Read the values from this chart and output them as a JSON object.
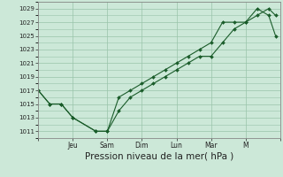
{
  "bg_color": "#cce8d8",
  "grid_color": "#99c4aa",
  "line_color": "#1a5c2a",
  "marker_color": "#1a5c2a",
  "xlabel": "Pression niveau de la mer( hPa )",
  "xlabel_fontsize": 7.5,
  "yticks": [
    1011,
    1013,
    1015,
    1017,
    1019,
    1021,
    1023,
    1025,
    1027,
    1029
  ],
  "ylim": [
    1010.0,
    1030.0
  ],
  "series1_x": [
    0,
    0.5,
    1.0,
    1.5,
    2.5,
    3.0,
    3.5,
    4.0,
    4.5,
    5.0,
    5.5,
    6.0,
    6.5,
    7.0,
    7.5,
    8.0,
    8.5,
    9.0,
    9.5,
    10.0,
    10.3
  ],
  "series1_y": [
    1017,
    1015,
    1015,
    1013,
    1011,
    1011,
    1014,
    1016,
    1017,
    1018,
    1019,
    1020,
    1021,
    1022,
    1022,
    1024,
    1026,
    1027,
    1028,
    1029,
    1028
  ],
  "series2_x": [
    0,
    0.5,
    1.0,
    1.5,
    2.5,
    3.0,
    3.5,
    4.0,
    4.5,
    5.0,
    5.5,
    6.0,
    6.5,
    7.0,
    7.5,
    8.0,
    8.5,
    9.0,
    9.5,
    10.0,
    10.3
  ],
  "series2_y": [
    1017,
    1015,
    1015,
    1013,
    1011,
    1011,
    1016,
    1017,
    1018,
    1019,
    1020,
    1021,
    1022,
    1023,
    1024,
    1027,
    1027,
    1027,
    1029,
    1028,
    1025
  ],
  "xlim": [
    0,
    10.5
  ],
  "x_day_positions": [
    0,
    1.5,
    3.0,
    4.5,
    6.0,
    7.5,
    9.0,
    10.5
  ],
  "x_day_labels": [
    "",
    "Jeu",
    "Sam",
    "Dim",
    "Lun",
    "Mar",
    "M",
    ""
  ]
}
